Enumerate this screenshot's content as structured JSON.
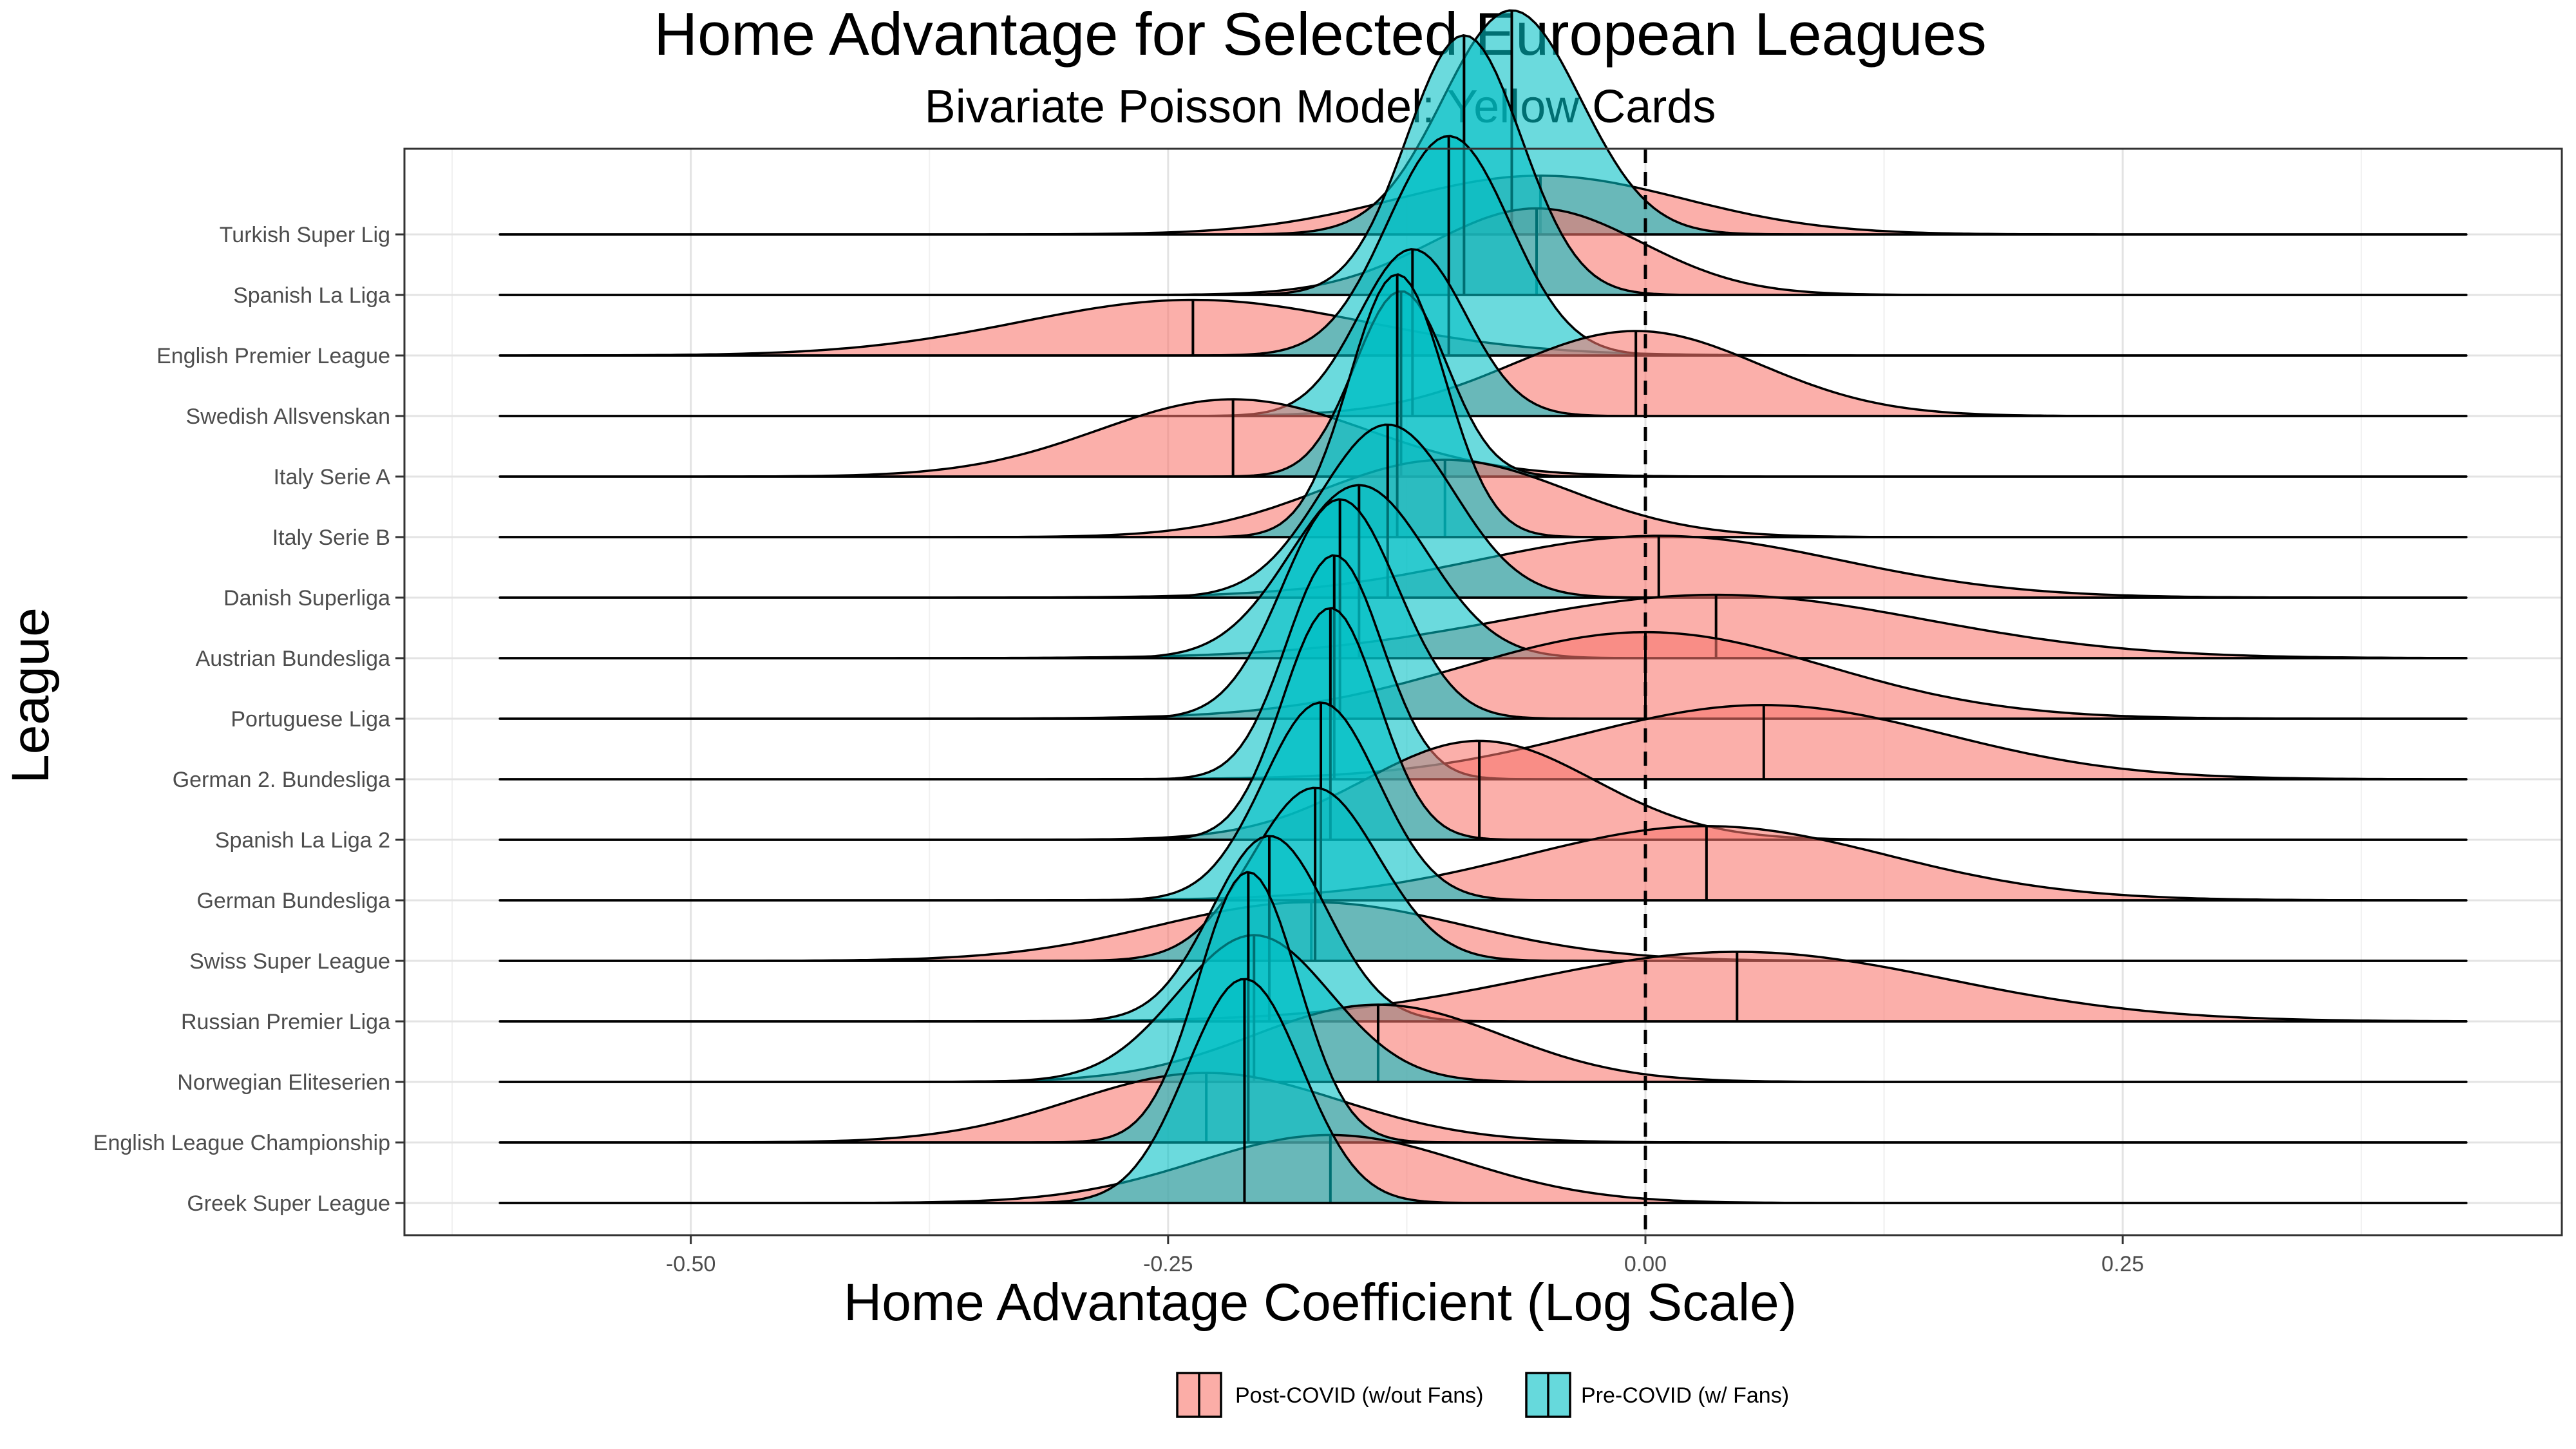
{
  "chart_data": {
    "type": "area",
    "subtype": "ridgeline-density",
    "title": "Home Advantage for Selected European Leagues",
    "subtitle": "Bivariate Poisson Model: Yellow Cards",
    "xlabel": "Home Advantage Coefficient (Log Scale)",
    "ylabel": "League",
    "xlim": [
      -0.65,
      0.48
    ],
    "x_ticks": [
      -0.5,
      -0.25,
      0.0,
      0.25
    ],
    "x_tick_labels": [
      "-0.50",
      "-0.25",
      "0.00",
      "0.25"
    ],
    "reference_line": {
      "x": 0.0,
      "style": "dashed"
    },
    "density_range": [
      -0.6,
      0.43
    ],
    "grid": true,
    "legend_position": "bottom",
    "series": [
      {
        "key": "post",
        "name": "Post-COVID (w/out Fans)",
        "color": "#F8766D"
      },
      {
        "key": "pre",
        "name": "Pre-COVID (w/ Fans)",
        "color": "#00BFC4"
      }
    ],
    "leagues": [
      {
        "name": "Turkish Super Lig",
        "pre": {
          "mean": -0.07,
          "sd": 0.036,
          "height": 1.45
        },
        "post": {
          "mean": -0.055,
          "sd": 0.075,
          "height": 0.38
        }
      },
      {
        "name": "Spanish La Liga",
        "pre": {
          "mean": -0.095,
          "sd": 0.03,
          "height": 1.68
        },
        "post": {
          "mean": -0.057,
          "sd": 0.055,
          "height": 0.56
        }
      },
      {
        "name": "English Premier League",
        "pre": {
          "mean": -0.103,
          "sd": 0.032,
          "height": 1.42
        },
        "post": {
          "mean": -0.237,
          "sd": 0.09,
          "height": 0.36
        }
      },
      {
        "name": "Swedish Allsvenskan",
        "pre": {
          "mean": -0.122,
          "sd": 0.028,
          "height": 1.08
        },
        "post": {
          "mean": -0.005,
          "sd": 0.065,
          "height": 0.55
        }
      },
      {
        "name": "Italy Serie A",
        "pre": {
          "mean": -0.128,
          "sd": 0.024,
          "height": 1.2
        },
        "post": {
          "mean": -0.216,
          "sd": 0.07,
          "height": 0.5
        }
      },
      {
        "name": "Italy Serie B",
        "pre": {
          "mean": -0.13,
          "sd": 0.025,
          "height": 1.7
        },
        "post": {
          "mean": -0.105,
          "sd": 0.065,
          "height": 0.5
        }
      },
      {
        "name": "Danish Superliga",
        "pre": {
          "mean": -0.135,
          "sd": 0.035,
          "height": 1.12
        },
        "post": {
          "mean": 0.007,
          "sd": 0.095,
          "height": 0.4
        }
      },
      {
        "name": "Austrian Bundesliga",
        "pre": {
          "mean": -0.15,
          "sd": 0.036,
          "height": 1.12
        },
        "post": {
          "mean": 0.037,
          "sd": 0.11,
          "height": 0.41
        }
      },
      {
        "name": "Portuguese Liga",
        "pre": {
          "mean": -0.16,
          "sd": 0.03,
          "height": 1.42
        },
        "post": {
          "mean": 0.0,
          "sd": 0.095,
          "height": 0.56
        }
      },
      {
        "name": "German 2. Bundesliga",
        "pre": {
          "mean": -0.163,
          "sd": 0.025,
          "height": 1.45
        },
        "post": {
          "mean": 0.062,
          "sd": 0.095,
          "height": 0.48
        }
      },
      {
        "name": "Spanish La Liga 2",
        "pre": {
          "mean": -0.165,
          "sd": 0.025,
          "height": 1.5
        },
        "post": {
          "mean": -0.087,
          "sd": 0.06,
          "height": 0.64
        }
      },
      {
        "name": "German Bundesliga",
        "pre": {
          "mean": -0.17,
          "sd": 0.03,
          "height": 1.28
        },
        "post": {
          "mean": 0.032,
          "sd": 0.095,
          "height": 0.48
        }
      },
      {
        "name": "Swiss Super League",
        "pre": {
          "mean": -0.173,
          "sd": 0.033,
          "height": 1.12
        },
        "post": {
          "mean": -0.175,
          "sd": 0.08,
          "height": 0.38
        }
      },
      {
        "name": "Russian Premier Liga",
        "pre": {
          "mean": -0.197,
          "sd": 0.03,
          "height": 1.2
        },
        "post": {
          "mean": 0.048,
          "sd": 0.11,
          "height": 0.45
        }
      },
      {
        "name": "Norwegian Eliteserien",
        "pre": {
          "mean": -0.205,
          "sd": 0.04,
          "height": 0.95
        },
        "post": {
          "mean": -0.14,
          "sd": 0.065,
          "height": 0.5
        }
      },
      {
        "name": "English League Championship",
        "pre": {
          "mean": -0.208,
          "sd": 0.026,
          "height": 1.75
        },
        "post": {
          "mean": -0.23,
          "sd": 0.07,
          "height": 0.45
        }
      },
      {
        "name": "Greek Super League",
        "pre": {
          "mean": -0.21,
          "sd": 0.03,
          "height": 1.45
        },
        "post": {
          "mean": -0.165,
          "sd": 0.07,
          "height": 0.44
        }
      }
    ]
  }
}
